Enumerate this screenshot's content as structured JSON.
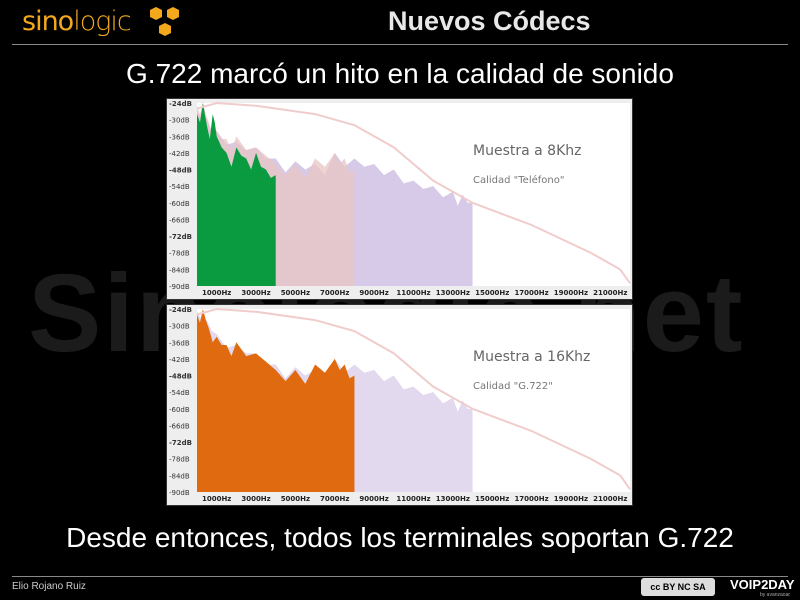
{
  "header": {
    "logo_left": "sino",
    "logo_right": "logic",
    "title": "Nuevos Códecs",
    "logo_color": "#f4a81c"
  },
  "subtitle": "G.722 marcó un hito en la calidad de sonido",
  "watermark": "Sinologic.net",
  "bottom_text": "Desde entonces, todos los terminales soportan G.722",
  "footer": {
    "author": "Elio Rojano Ruiz",
    "license": "cc BY NC SA",
    "brand": "VOIP2DAY",
    "brand_sub": "by avanzaoar"
  },
  "chart_data": [
    {
      "type": "area",
      "title": "Muestra a 8Khz",
      "subtitle": "Calidad \"Teléfono\"",
      "x_ticks": [
        "1000Hz",
        "3000Hz",
        "5000Hz",
        "7000Hz",
        "9000Hz",
        "11000Hz",
        "13000Hz",
        "15000Hz",
        "17000Hz",
        "19000Hz",
        "21000Hz"
      ],
      "y_ticks": [
        "-24dB",
        "-30dB",
        "-36dB",
        "-42dB",
        "-48dB",
        "-54dB",
        "-60dB",
        "-66dB",
        "-72dB",
        "-78dB",
        "-84dB",
        "-90dB"
      ],
      "xlim": [
        0,
        22000
      ],
      "ylim": [
        -90,
        -24
      ],
      "series": [
        {
          "color": "#c8b8e0",
          "x": [
            0,
            500,
            1000,
            2000,
            3000,
            4000,
            5000,
            6000,
            7000,
            8000,
            9000,
            10000,
            11000,
            12000,
            13000,
            13500,
            14000
          ],
          "y": [
            -27,
            -30,
            -34,
            -38,
            -40,
            -44,
            -45,
            -46,
            -42,
            -44,
            -46,
            -48,
            -52,
            -54,
            -56,
            -57,
            -60
          ]
        },
        {
          "color": "#e8c4c4",
          "x": [
            0,
            300,
            600,
            1000,
            1500,
            2000,
            3000,
            4000,
            5000,
            6000,
            7000,
            7500,
            8000
          ],
          "y": [
            -25,
            -24,
            -31,
            -34,
            -37,
            -36,
            -40,
            -46,
            -46,
            -44,
            -42,
            -44,
            -48
          ]
        },
        {
          "color": "#0a9a40",
          "x": [
            0,
            300,
            500,
            800,
            1000,
            1500,
            2000,
            2500,
            3000,
            3500,
            4000
          ],
          "y": [
            -28,
            -24,
            -32,
            -28,
            -36,
            -42,
            -40,
            -44,
            -42,
            -48,
            -50
          ]
        }
      ],
      "filter_curve": {
        "color": "#f0cccc",
        "x": [
          0,
          1000,
          3000,
          6000,
          8000,
          10000,
          12000,
          14000,
          17000,
          20000,
          21500,
          22000
        ],
        "y": [
          -26,
          -24,
          -25,
          -28,
          -32,
          -40,
          -52,
          -60,
          -68,
          -78,
          -84,
          -89
        ]
      }
    },
    {
      "type": "area",
      "title": "Muestra a 16Khz",
      "subtitle": "Calidad \"G.722\"",
      "x_ticks": [
        "1000Hz",
        "3000Hz",
        "5000Hz",
        "7000Hz",
        "9000Hz",
        "11000Hz",
        "13000Hz",
        "15000Hz",
        "17000Hz",
        "19000Hz",
        "21000Hz"
      ],
      "y_ticks": [
        "-24dB",
        "-30dB",
        "-36dB",
        "-42dB",
        "-48dB",
        "-54dB",
        "-60dB",
        "-66dB",
        "-72dB",
        "-78dB",
        "-84dB",
        "-90dB"
      ],
      "xlim": [
        0,
        22000
      ],
      "ylim": [
        -90,
        -24
      ],
      "series": [
        {
          "color": "#d8cce8",
          "x": [
            0,
            500,
            1000,
            2000,
            3000,
            4000,
            5000,
            6000,
            7000,
            8000,
            9000,
            10000,
            11000,
            12000,
            13000,
            13500,
            14000
          ],
          "y": [
            -25,
            -28,
            -33,
            -37,
            -40,
            -44,
            -45,
            -46,
            -42,
            -44,
            -46,
            -48,
            -52,
            -54,
            -56,
            -57,
            -60
          ]
        },
        {
          "color": "#e06a10",
          "x": [
            0,
            300,
            600,
            1000,
            1500,
            2000,
            3000,
            4000,
            5000,
            6000,
            7000,
            7500,
            8000
          ],
          "y": [
            -26,
            -24,
            -31,
            -34,
            -37,
            -36,
            -40,
            -46,
            -46,
            -44,
            -42,
            -44,
            -48
          ]
        }
      ],
      "filter_curve": {
        "color": "#f0cccc",
        "x": [
          0,
          1000,
          3000,
          6000,
          8000,
          10000,
          12000,
          14000,
          17000,
          20000,
          21500,
          22000
        ],
        "y": [
          -26,
          -24,
          -25,
          -28,
          -32,
          -40,
          -52,
          -60,
          -68,
          -78,
          -84,
          -89
        ]
      }
    }
  ]
}
